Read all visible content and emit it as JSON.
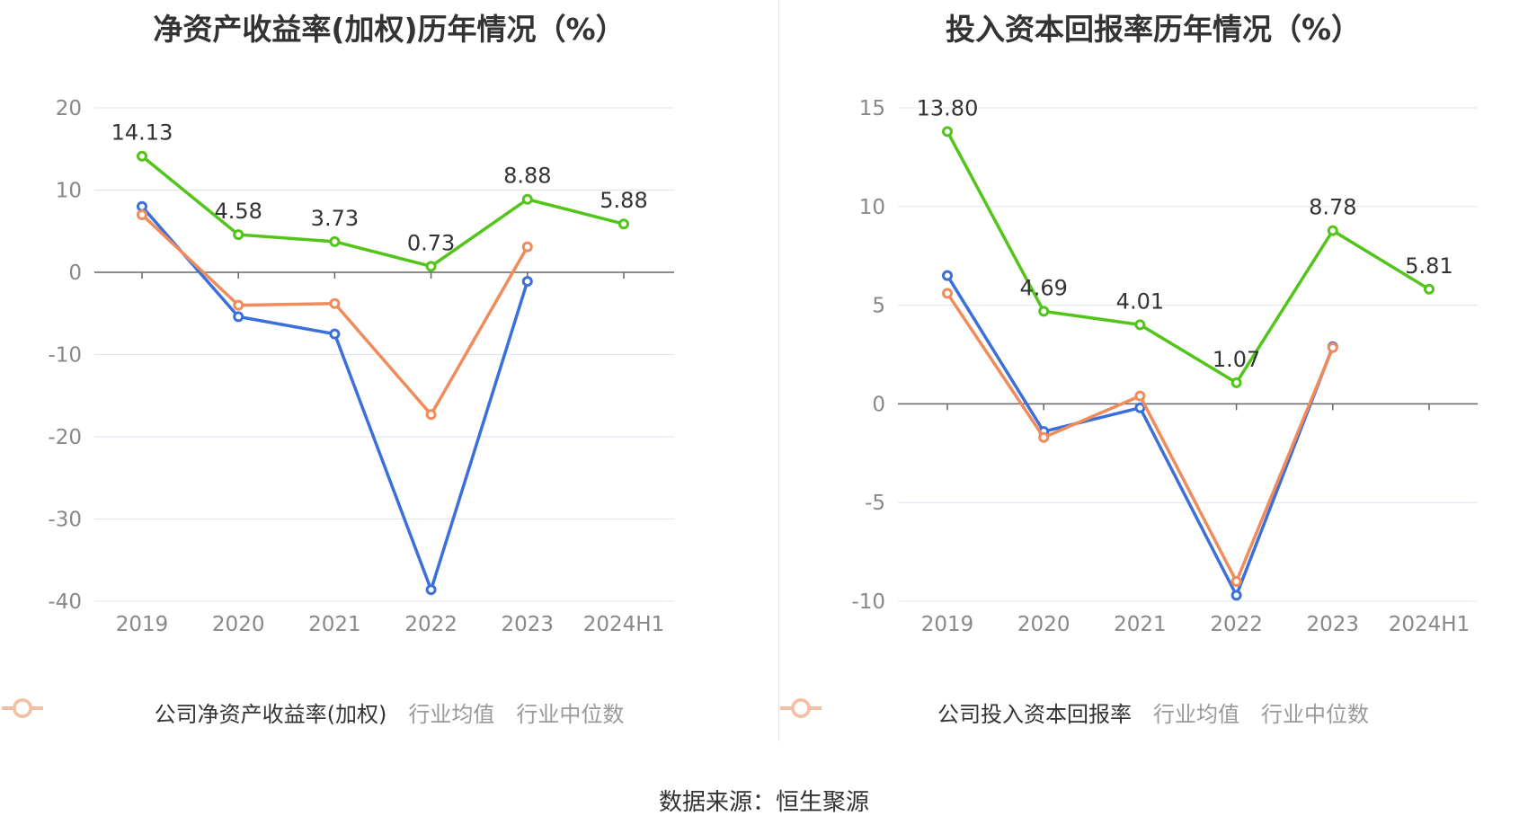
{
  "chart_data": [
    {
      "type": "line",
      "title": "净资产收益率(加权)历年情况（%）",
      "categories": [
        "2019",
        "2020",
        "2021",
        "2022",
        "2023",
        "2024H1"
      ],
      "yticks": [
        "20",
        "10",
        "0",
        "-10",
        "-20",
        "-30",
        "-40"
      ],
      "ylim": [
        -40,
        20
      ],
      "grid": true,
      "legend_position": "bottom",
      "series": [
        {
          "name": "公司净资产收益率(加权)",
          "color": "#52c41a",
          "values": [
            14.13,
            4.58,
            3.73,
            0.73,
            8.88,
            5.88
          ],
          "labels": [
            "14.13",
            "4.58",
            "3.73",
            "0.73",
            "8.88",
            "5.88"
          ]
        },
        {
          "name": "行业均值",
          "color": "#3b6fd9",
          "values": [
            8.0,
            -5.4,
            -7.5,
            -38.6,
            -1.1,
            null
          ]
        },
        {
          "name": "行业中位数",
          "color": "#f08b5c",
          "values": [
            7.0,
            -4.0,
            -3.8,
            -17.3,
            3.1,
            null
          ]
        }
      ]
    },
    {
      "type": "line",
      "title": "投入资本回报率历年情况（%）",
      "categories": [
        "2019",
        "2020",
        "2021",
        "2022",
        "2023",
        "2024H1"
      ],
      "yticks": [
        "15",
        "10",
        "5",
        "0",
        "-5",
        "-10"
      ],
      "ylim": [
        -10,
        15
      ],
      "grid": true,
      "legend_position": "bottom",
      "series": [
        {
          "name": "公司投入资本回报率",
          "color": "#52c41a",
          "values": [
            13.8,
            4.69,
            4.01,
            1.07,
            8.78,
            5.81
          ],
          "labels": [
            "13.80",
            "4.69",
            "4.01",
            "1.07",
            "8.78",
            "5.81"
          ]
        },
        {
          "name": "行业均值",
          "color": "#3b6fd9",
          "values": [
            6.5,
            -1.4,
            -0.2,
            -9.7,
            2.9,
            null
          ]
        },
        {
          "name": "行业中位数",
          "color": "#f08b5c",
          "values": [
            5.6,
            -1.7,
            0.4,
            -9.0,
            2.85,
            null
          ]
        }
      ]
    }
  ],
  "source_text": "数据来源：恒生聚源"
}
